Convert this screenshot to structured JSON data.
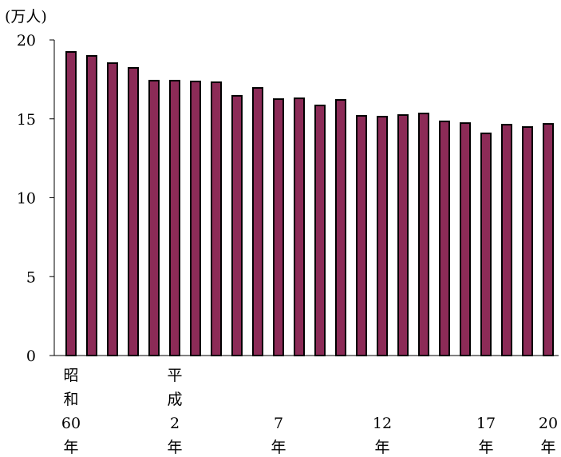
{
  "chart_data": {
    "type": "bar",
    "y_label": "(万人)",
    "categories": [
      "昭\n和\n60\n年",
      null,
      null,
      null,
      null,
      "平\n成\n2\n年",
      null,
      null,
      null,
      null,
      "7\n年",
      null,
      null,
      null,
      null,
      "12\n年",
      null,
      null,
      null,
      null,
      "17\n年",
      null,
      null,
      "20\n年"
    ],
    "values": [
      19.24,
      18.99,
      18.53,
      18.23,
      17.42,
      17.42,
      17.37,
      17.32,
      16.46,
      16.96,
      16.25,
      16.3,
      15.85,
      16.2,
      15.19,
      15.14,
      15.24,
      15.34,
      14.84,
      14.73,
      14.08,
      14.63,
      14.48,
      14.68
    ],
    "color": "#8c2b57",
    "ylim": [
      0,
      20
    ],
    "yticks": [
      0,
      5,
      10,
      15,
      20
    ],
    "grid": false
  }
}
